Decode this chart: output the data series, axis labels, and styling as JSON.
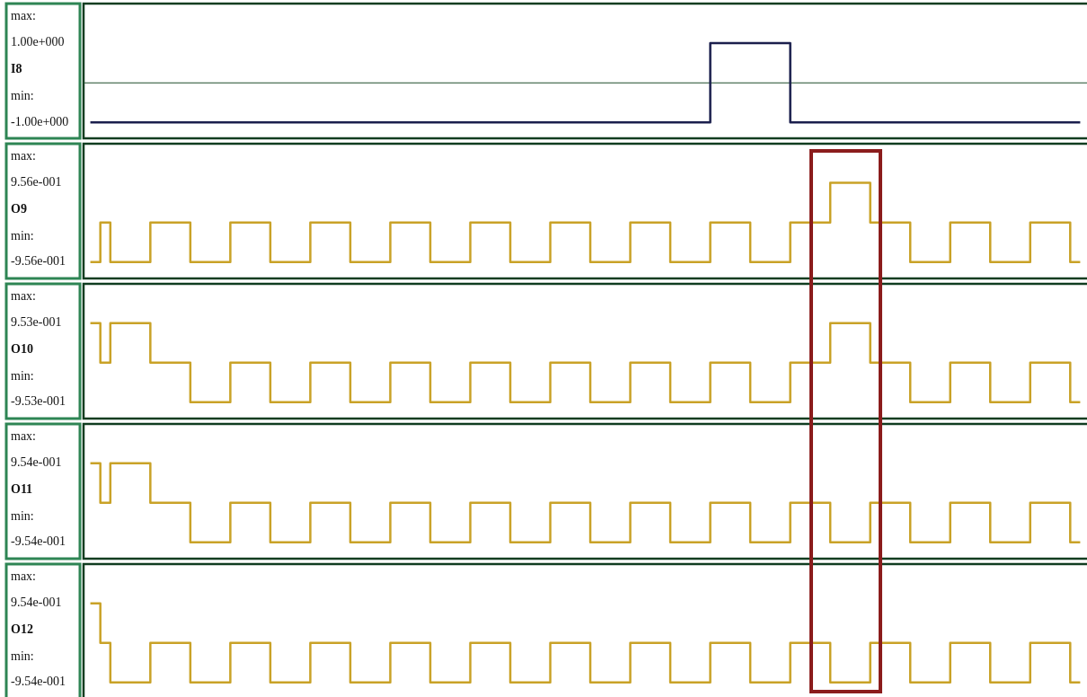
{
  "chart_data": [
    {
      "type": "step",
      "ylabel": "I8",
      "ylim": [
        -1.4,
        2
      ],
      "yticks": [
        {
          "value": 1,
          "label": "1.00e+000"
        },
        {
          "value": -1,
          "label": "-1.00e+000"
        }
      ],
      "annotations": [
        "max:",
        "min:"
      ],
      "ref_lines": [
        {
          "axis": "y",
          "value": 0,
          "color": "#1e4d2b"
        }
      ],
      "categories": [
        null,
        null,
        null,
        null,
        null,
        null,
        null,
        null,
        null,
        null,
        null,
        null,
        null,
        null,
        null,
        null,
        null,
        null,
        null,
        null,
        null,
        null,
        null,
        null,
        null,
        null,
        null,
        null,
        null,
        null,
        null,
        null,
        null,
        null,
        null,
        null,
        null,
        null,
        null,
        null,
        null,
        null,
        null,
        null,
        null,
        null,
        null,
        null,
        null,
        null,
        null,
        null,
        null,
        null,
        null,
        null,
        null,
        null,
        null,
        null,
        null,
        null,
        null,
        null,
        null,
        null,
        null,
        null,
        null,
        null,
        null,
        null,
        null,
        null,
        null,
        null,
        null,
        null,
        null,
        null,
        null,
        null,
        null,
        null,
        null,
        null,
        null,
        null,
        null,
        null,
        null,
        null,
        null,
        null,
        null,
        null,
        null,
        null,
        null,
        null
      ],
      "series": [
        {
          "color": "#1b1f4d",
          "values": [
            -1,
            -1,
            -1,
            -1,
            -1,
            -1,
            -1,
            -1,
            -1,
            -1,
            -1,
            -1,
            -1,
            -1,
            -1,
            -1,
            -1,
            -1,
            -1,
            -1,
            -1,
            -1,
            -1,
            -1,
            -1,
            -1,
            -1,
            -1,
            -1,
            -1,
            -1,
            -1,
            -1,
            -1,
            -1,
            -1,
            -1,
            -1,
            -1,
            -1,
            -1,
            -1,
            -1,
            -1,
            -1,
            -1,
            -1,
            -1,
            -1,
            -1,
            -1,
            -1,
            -1,
            -1,
            -1,
            -1,
            -1,
            -1,
            -1,
            -1,
            -1,
            -1,
            1,
            1,
            1,
            1,
            1,
            1,
            1,
            1,
            -1,
            -1,
            -1,
            -1,
            -1,
            -1,
            -1,
            -1,
            -1,
            -1,
            -1,
            -1,
            -1,
            -1,
            -1,
            -1,
            -1,
            -1,
            -1,
            -1,
            -1,
            -1,
            -1,
            -1,
            -1,
            -1,
            -1,
            -1,
            -1,
            -1
          ]
        }
      ]
    },
    {
      "type": "step",
      "ylabel": "O9",
      "ylim": [
        -1.35,
        1.9
      ],
      "yticks": [
        {
          "value": 0.956,
          "label": "9.56e-001"
        },
        {
          "value": -0.956,
          "label": "-9.56e-001"
        }
      ],
      "annotations": [
        "max:",
        "min:"
      ],
      "categories": [
        null,
        null,
        null,
        null,
        null,
        null,
        null,
        null,
        null,
        null,
        null,
        null,
        null,
        null,
        null,
        null,
        null,
        null,
        null,
        null,
        null,
        null,
        null,
        null,
        null,
        null,
        null,
        null,
        null,
        null,
        null,
        null,
        null,
        null,
        null,
        null,
        null,
        null,
        null,
        null,
        null,
        null,
        null,
        null,
        null,
        null,
        null,
        null,
        null,
        null,
        null,
        null,
        null,
        null,
        null,
        null,
        null,
        null,
        null,
        null,
        null,
        null,
        null,
        null,
        null,
        null,
        null,
        null,
        null,
        null,
        null,
        null,
        null,
        null,
        null,
        null,
        null,
        null,
        null,
        null,
        null,
        null,
        null,
        null,
        null,
        null,
        null,
        null,
        null,
        null,
        null,
        null,
        null,
        null,
        null,
        null,
        null,
        null,
        null,
        null
      ],
      "series": [
        {
          "color": "#c9a227",
          "values": [
            -0.956,
            0,
            -0.956,
            -0.956,
            -0.956,
            -0.956,
            0,
            0,
            0,
            0,
            -0.956,
            -0.956,
            -0.956,
            -0.956,
            0,
            0,
            0,
            0,
            -0.956,
            -0.956,
            -0.956,
            -0.956,
            0,
            0,
            0,
            0,
            -0.956,
            -0.956,
            -0.956,
            -0.956,
            0,
            0,
            0,
            0,
            -0.956,
            -0.956,
            -0.956,
            -0.956,
            0,
            0,
            0,
            0,
            -0.956,
            -0.956,
            -0.956,
            -0.956,
            0,
            0,
            0,
            0,
            -0.956,
            -0.956,
            -0.956,
            -0.956,
            0,
            0,
            0,
            0,
            -0.956,
            -0.956,
            -0.956,
            -0.956,
            0,
            0,
            0,
            0,
            -0.956,
            -0.956,
            -0.956,
            -0.956,
            0,
            0,
            0,
            0,
            0.956,
            0.956,
            0.956,
            0.956,
            0,
            0,
            0,
            0,
            -0.956,
            -0.956,
            -0.956,
            -0.956,
            0,
            0,
            0,
            0,
            -0.956,
            -0.956,
            -0.956,
            -0.956,
            0,
            0,
            0,
            0,
            -0.956,
            -0.956
          ]
        }
      ]
    },
    {
      "type": "step",
      "ylabel": "O10",
      "ylim": [
        -1.35,
        1.9
      ],
      "yticks": [
        {
          "value": 0.953,
          "label": "9.53e-001"
        },
        {
          "value": -0.953,
          "label": "-9.53e-001"
        }
      ],
      "annotations": [
        "max:",
        "min:"
      ],
      "categories": [
        null,
        null,
        null,
        null,
        null,
        null,
        null,
        null,
        null,
        null,
        null,
        null,
        null,
        null,
        null,
        null,
        null,
        null,
        null,
        null,
        null,
        null,
        null,
        null,
        null,
        null,
        null,
        null,
        null,
        null,
        null,
        null,
        null,
        null,
        null,
        null,
        null,
        null,
        null,
        null,
        null,
        null,
        null,
        null,
        null,
        null,
        null,
        null,
        null,
        null,
        null,
        null,
        null,
        null,
        null,
        null,
        null,
        null,
        null,
        null,
        null,
        null,
        null,
        null,
        null,
        null,
        null,
        null,
        null,
        null,
        null,
        null,
        null,
        null,
        null,
        null,
        null,
        null,
        null,
        null,
        null,
        null,
        null,
        null,
        null,
        null,
        null,
        null,
        null,
        null,
        null,
        null,
        null,
        null,
        null,
        null,
        null,
        null,
        null,
        null
      ],
      "series": [
        {
          "color": "#c9a227",
          "values": [
            0.953,
            0,
            0.953,
            0.953,
            0.953,
            0.953,
            0,
            0,
            0,
            0,
            -0.953,
            -0.953,
            -0.953,
            -0.953,
            0,
            0,
            0,
            0,
            -0.953,
            -0.953,
            -0.953,
            -0.953,
            0,
            0,
            0,
            0,
            -0.953,
            -0.953,
            -0.953,
            -0.953,
            0,
            0,
            0,
            0,
            -0.953,
            -0.953,
            -0.953,
            -0.953,
            0,
            0,
            0,
            0,
            -0.953,
            -0.953,
            -0.953,
            -0.953,
            0,
            0,
            0,
            0,
            -0.953,
            -0.953,
            -0.953,
            -0.953,
            0,
            0,
            0,
            0,
            -0.953,
            -0.953,
            -0.953,
            -0.953,
            0,
            0,
            0,
            0,
            -0.953,
            -0.953,
            -0.953,
            -0.953,
            0,
            0,
            0,
            0,
            0.953,
            0.953,
            0.953,
            0.953,
            0,
            0,
            0,
            0,
            -0.953,
            -0.953,
            -0.953,
            -0.953,
            0,
            0,
            0,
            0,
            -0.953,
            -0.953,
            -0.953,
            -0.953,
            0,
            0,
            0,
            0,
            -0.953,
            -0.953
          ]
        }
      ]
    },
    {
      "type": "step",
      "ylabel": "O11",
      "ylim": [
        -1.35,
        1.9
      ],
      "yticks": [
        {
          "value": 0.954,
          "label": "9.54e-001"
        },
        {
          "value": -0.954,
          "label": "-9.54e-001"
        }
      ],
      "annotations": [
        "max:",
        "min:"
      ],
      "categories": [
        null,
        null,
        null,
        null,
        null,
        null,
        null,
        null,
        null,
        null,
        null,
        null,
        null,
        null,
        null,
        null,
        null,
        null,
        null,
        null,
        null,
        null,
        null,
        null,
        null,
        null,
        null,
        null,
        null,
        null,
        null,
        null,
        null,
        null,
        null,
        null,
        null,
        null,
        null,
        null,
        null,
        null,
        null,
        null,
        null,
        null,
        null,
        null,
        null,
        null,
        null,
        null,
        null,
        null,
        null,
        null,
        null,
        null,
        null,
        null,
        null,
        null,
        null,
        null,
        null,
        null,
        null,
        null,
        null,
        null,
        null,
        null,
        null,
        null,
        null,
        null,
        null,
        null,
        null,
        null,
        null,
        null,
        null,
        null,
        null,
        null,
        null,
        null,
        null,
        null,
        null,
        null,
        null,
        null,
        null,
        null,
        null,
        null,
        null,
        null
      ],
      "series": [
        {
          "color": "#c9a227",
          "values": [
            0.954,
            0,
            0.954,
            0.954,
            0.954,
            0.954,
            0,
            0,
            0,
            0,
            -0.954,
            -0.954,
            -0.954,
            -0.954,
            0,
            0,
            0,
            0,
            -0.954,
            -0.954,
            -0.954,
            -0.954,
            0,
            0,
            0,
            0,
            -0.954,
            -0.954,
            -0.954,
            -0.954,
            0,
            0,
            0,
            0,
            -0.954,
            -0.954,
            -0.954,
            -0.954,
            0,
            0,
            0,
            0,
            -0.954,
            -0.954,
            -0.954,
            -0.954,
            0,
            0,
            0,
            0,
            -0.954,
            -0.954,
            -0.954,
            -0.954,
            0,
            0,
            0,
            0,
            -0.954,
            -0.954,
            -0.954,
            -0.954,
            0,
            0,
            0,
            0,
            -0.954,
            -0.954,
            -0.954,
            -0.954,
            0,
            0,
            0,
            0,
            -0.954,
            -0.954,
            -0.954,
            -0.954,
            0,
            0,
            0,
            0,
            -0.954,
            -0.954,
            -0.954,
            -0.954,
            0,
            0,
            0,
            0,
            -0.954,
            -0.954,
            -0.954,
            -0.954,
            0,
            0,
            0,
            0,
            -0.954,
            -0.954
          ]
        }
      ]
    },
    {
      "type": "step",
      "ylabel": "O12",
      "ylim": [
        -1.35,
        1.9
      ],
      "yticks": [
        {
          "value": 0.954,
          "label": "9.54e-001"
        },
        {
          "value": -0.954,
          "label": "-9.54e-001"
        }
      ],
      "annotations": [
        "max:",
        "min:"
      ],
      "categories": [
        null,
        null,
        null,
        null,
        null,
        null,
        null,
        null,
        null,
        null,
        null,
        null,
        null,
        null,
        null,
        null,
        null,
        null,
        null,
        null,
        null,
        null,
        null,
        null,
        null,
        null,
        null,
        null,
        null,
        null,
        null,
        null,
        null,
        null,
        null,
        null,
        null,
        null,
        null,
        null,
        null,
        null,
        null,
        null,
        null,
        null,
        null,
        null,
        null,
        null,
        null,
        null,
        null,
        null,
        null,
        null,
        null,
        null,
        null,
        null,
        null,
        null,
        null,
        null,
        null,
        null,
        null,
        null,
        null,
        null,
        null,
        null,
        null,
        null,
        null,
        null,
        null,
        null,
        null,
        null,
        null,
        null,
        null,
        null,
        null,
        null,
        null,
        null,
        null,
        null,
        null,
        null,
        null,
        null,
        null,
        null,
        null,
        null,
        null,
        null
      ],
      "series": [
        {
          "color": "#c9a227",
          "values": [
            0.954,
            0,
            -0.954,
            -0.954,
            -0.954,
            -0.954,
            0,
            0,
            0,
            0,
            -0.954,
            -0.954,
            -0.954,
            -0.954,
            0,
            0,
            0,
            0,
            -0.954,
            -0.954,
            -0.954,
            -0.954,
            0,
            0,
            0,
            0,
            -0.954,
            -0.954,
            -0.954,
            -0.954,
            0,
            0,
            0,
            0,
            -0.954,
            -0.954,
            -0.954,
            -0.954,
            0,
            0,
            0,
            0,
            -0.954,
            -0.954,
            -0.954,
            -0.954,
            0,
            0,
            0,
            0,
            -0.954,
            -0.954,
            -0.954,
            -0.954,
            0,
            0,
            0,
            0,
            -0.954,
            -0.954,
            -0.954,
            -0.954,
            0,
            0,
            0,
            0,
            -0.954,
            -0.954,
            -0.954,
            -0.954,
            0,
            0,
            0,
            0,
            -0.954,
            -0.954,
            -0.954,
            -0.954,
            0,
            0,
            0,
            0,
            -0.954,
            -0.954,
            -0.954,
            -0.954,
            0,
            0,
            0,
            0,
            -0.954,
            -0.954,
            -0.954,
            -0.954,
            0,
            0,
            0,
            0,
            -0.954,
            -0.954
          ]
        }
      ]
    }
  ]
}
